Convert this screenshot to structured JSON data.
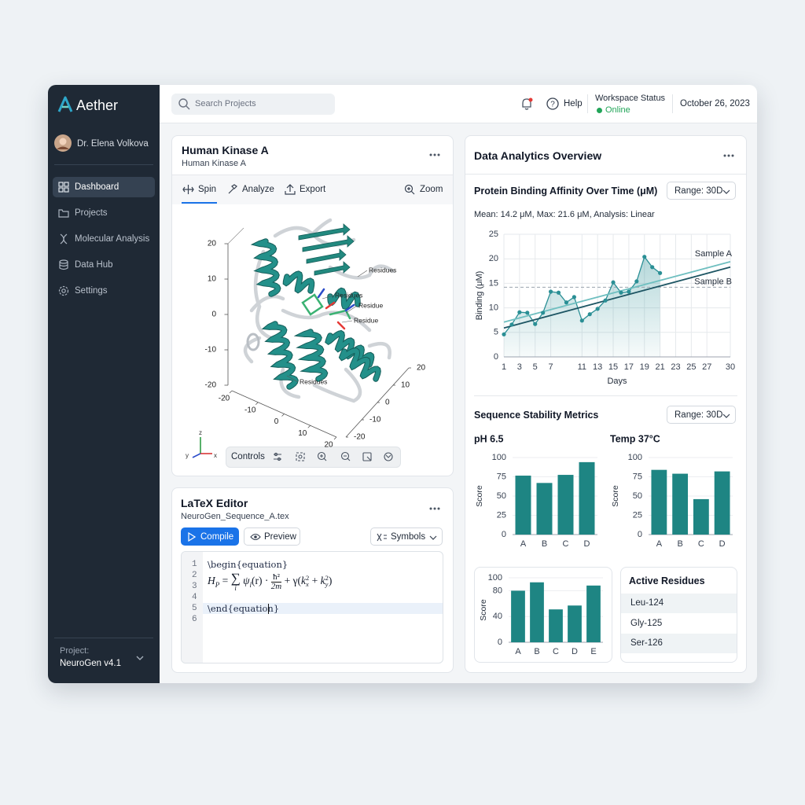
{
  "sidebar": {
    "brand": "Aether",
    "user": "Dr. Elena Volkova",
    "nav": [
      "Dashboard",
      "Projects",
      "Molecular Analysis",
      "Data Hub",
      "Settings"
    ],
    "project_label": "Project:",
    "project": "NeuroGen v4.1"
  },
  "topbar": {
    "search": "Search Projects",
    "help": "Help",
    "status_label": "Workspace Status",
    "status": "Online",
    "date": "October 26, 2023"
  },
  "molecule_panel": {
    "title": "Human Kinase A",
    "subtitle": "Human Kinase A",
    "tools": [
      "Spin",
      "Analyze",
      "Export"
    ],
    "zoom": "Zoom",
    "controls": "Controls",
    "residue_labels": [
      "Residues",
      "Residues",
      "Residue",
      "Residue",
      "Residues"
    ],
    "axis_y": [
      20,
      10,
      0,
      -10,
      -20
    ],
    "axis_x": [
      -20,
      -10,
      0,
      10,
      20
    ],
    "axis_z": [
      -20,
      -10,
      0,
      10,
      20
    ],
    "gizmo": [
      "z",
      "y",
      "x"
    ]
  },
  "latex_editor": {
    "title": "LaTeX Editor",
    "file": "NeuroGen_Sequence_A.tex",
    "compile": "Compile",
    "preview": "Preview",
    "symbols": "Symbols",
    "line_numbers": [
      1,
      2,
      3,
      4,
      5,
      6
    ],
    "begin": "\\begin{equation}",
    "end": "\\end{equation}",
    "math": {
      "lhs": "H",
      "lhs_sub": "P",
      "eq": "=",
      "sum": "∑",
      "sum_sub": "i",
      "psi": "ψ",
      "psi_sub": "l",
      "psi_arg": "(r) ·",
      "num": "ħ²",
      "den": "2m",
      "tail_open": "+ γ(",
      "k1": "k",
      "k1_sup": "2",
      "k1_sub": "x",
      "plus": "+",
      "k2": "k",
      "k2_sup": "2",
      "k2_sub": "y",
      "close": ")"
    }
  },
  "analytics": {
    "title": "Data Analytics Overview",
    "binding_chart": {
      "type": "line",
      "title": "Protein Binding Affinity Over Time (μM)",
      "range": "Range: 30D",
      "summary": "Mean: 14.2 μM,  Max: 21.6 μM,  Analysis: Linear",
      "x_label": "Days",
      "y_label": "Binding (μM)",
      "xlim": [
        1,
        30
      ],
      "ylim": [
        0,
        25
      ],
      "xticks": [
        1,
        3,
        5,
        7,
        11,
        13,
        15,
        17,
        19,
        21,
        23,
        25,
        27,
        30
      ],
      "yticks": [
        0,
        5,
        10,
        15,
        20,
        25
      ],
      "grid": true,
      "mean_line": 14.2,
      "points": {
        "color": "#2a8f95",
        "x": [
          1,
          2,
          3,
          4,
          5,
          6,
          7,
          8,
          9,
          10,
          11,
          12,
          13,
          14,
          15,
          16,
          17,
          18,
          19,
          20,
          21
        ],
        "values": [
          4.6,
          6.6,
          9.1,
          9.0,
          6.7,
          9.0,
          13.3,
          13.1,
          11.1,
          12.2,
          7.4,
          8.7,
          9.8,
          11.5,
          15.2,
          13.1,
          13.3,
          15.4,
          20.4,
          18.3,
          17.1
        ]
      },
      "series": [
        {
          "name": "Sample A",
          "color": "#6fbfc0",
          "x": [
            1,
            30
          ],
          "values": [
            7.1,
            19.4
          ]
        },
        {
          "name": "Sample B",
          "color": "#1d5563",
          "x": [
            1,
            30
          ],
          "values": [
            5.9,
            18.3
          ]
        }
      ]
    },
    "stability": {
      "title": "Sequence Stability Metrics",
      "range": "Range: 30D",
      "charts": [
        {
          "type": "bar",
          "title": "pH 6.5",
          "y_label": "Score",
          "color": "#1e8583",
          "categories": [
            "A",
            "B",
            "C",
            "D"
          ],
          "values": [
            76.5,
            67,
            77.5,
            94
          ],
          "ylim": [
            0,
            100
          ],
          "yticks": [
            0,
            25,
            50,
            75,
            100
          ],
          "grid": true
        },
        {
          "type": "bar",
          "title": "Temp 37°C",
          "y_label": "Score",
          "color": "#1e8583",
          "categories": [
            "A",
            "B",
            "C",
            "D"
          ],
          "values": [
            84,
            79,
            46,
            82
          ],
          "ylim": [
            0,
            100
          ],
          "yticks": [
            0,
            25,
            50,
            75,
            100
          ],
          "grid": true
        }
      ]
    },
    "scores_chart": {
      "type": "bar",
      "y_label": "Score",
      "color": "#1e8583",
      "categories": [
        "A",
        "B",
        "C",
        "D",
        "E"
      ],
      "values": [
        80,
        93,
        51,
        57,
        88
      ],
      "ylim": [
        0,
        100
      ],
      "yticks": [
        0,
        40,
        80,
        100
      ],
      "grid": true
    },
    "active_residues": {
      "title": "Active Residues",
      "items": [
        "Leu-124",
        "Gly-125",
        "Ser-126"
      ]
    }
  }
}
